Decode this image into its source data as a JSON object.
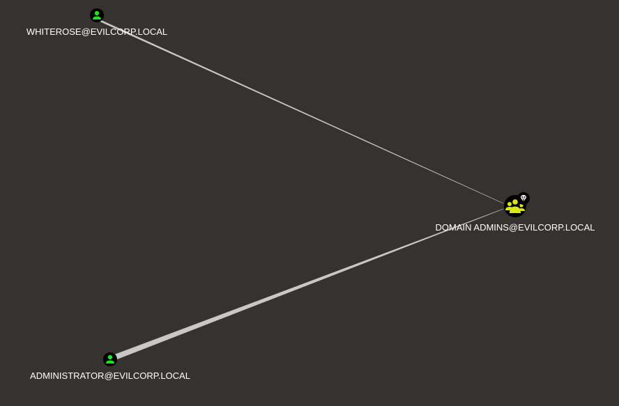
{
  "graph": {
    "nodes": [
      {
        "id": "whiterose",
        "label": "WHITEROSE@EVILCORP.LOCAL",
        "kind": "user",
        "icon": "user-icon",
        "color": "#17e625"
      },
      {
        "id": "domain_admins",
        "label": "DOMAIN ADMINS@EVILCORP.LOCAL",
        "kind": "group",
        "icon": "group-icon",
        "badge": "diamond-icon",
        "color": "#dbe617"
      },
      {
        "id": "administrator",
        "label": "ADMINISTRATOR@EVILCORP.LOCAL",
        "kind": "user",
        "icon": "user-icon",
        "color": "#17e625"
      }
    ],
    "edges": [
      {
        "id": "edge-whiterose-domain-admins",
        "source": "whiterose",
        "target": "domain_admins"
      },
      {
        "id": "edge-administrator-domain-admins",
        "source": "administrator",
        "target": "domain_admins"
      }
    ],
    "colors": {
      "background": "#36322f",
      "edge": "#c8c8c8",
      "node_disc": "#000000",
      "label": "#ffffff"
    }
  }
}
